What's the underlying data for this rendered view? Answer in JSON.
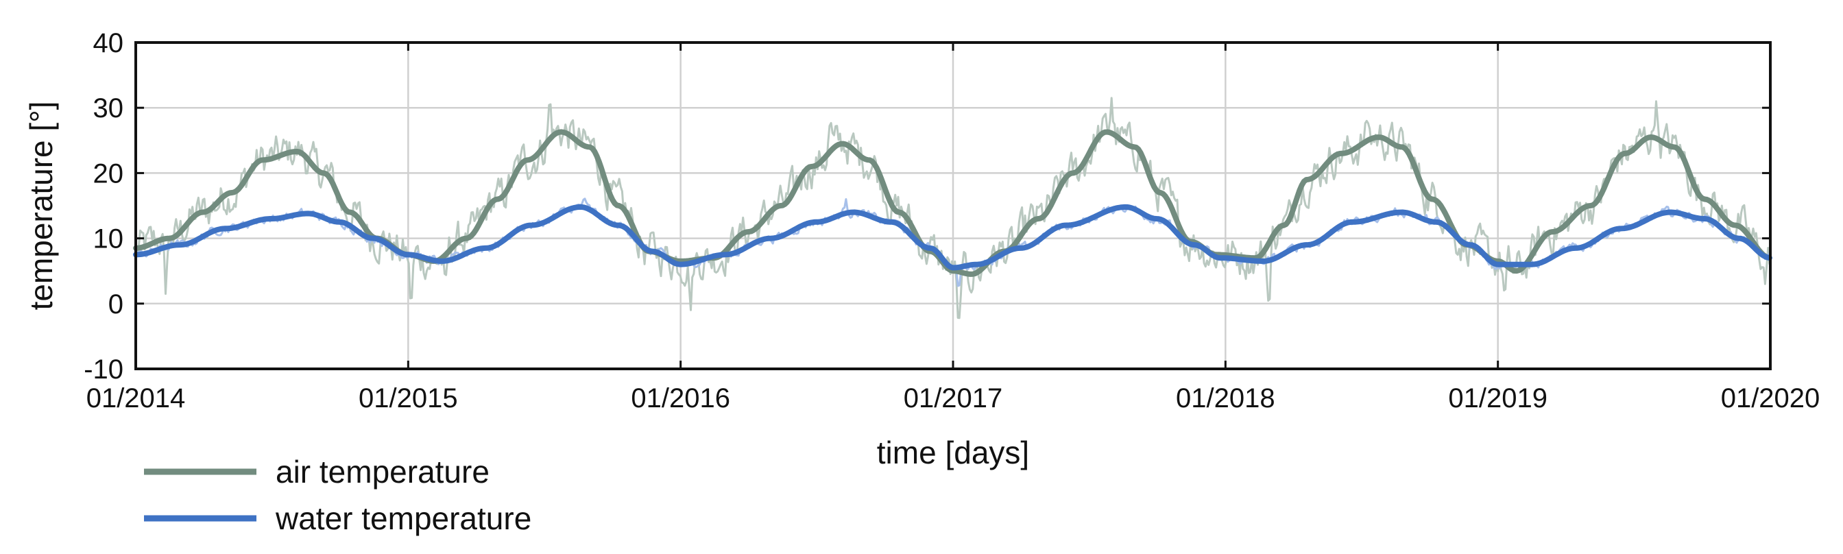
{
  "chart_data": {
    "type": "line",
    "xlabel": "time [days]",
    "ylabel": "temperature [°]",
    "x_ticks": [
      "01/2014",
      "01/2015",
      "01/2016",
      "01/2017",
      "01/2018",
      "01/2019",
      "01/2020"
    ],
    "xlim": [
      "2014-01-01",
      "2020-01-01"
    ],
    "ylim": [
      -10,
      40
    ],
    "y_ticks": [
      -10,
      0,
      10,
      20,
      30,
      40
    ],
    "grid": true,
    "legend_position": "bottom-left, below plot",
    "colors": {
      "air_smooth": "#728c7f",
      "air_raw": "#b9c8c0",
      "water_smooth": "#3e72c4",
      "water_raw": "#a7c0ea",
      "grid": "#d0d0d0",
      "axis": "#111111"
    },
    "series": [
      {
        "name": "air temperature",
        "kind": "smoothed",
        "points": [
          [
            "2014-01-01",
            8.5
          ],
          [
            "2014-02-15",
            10
          ],
          [
            "2014-04-01",
            14
          ],
          [
            "2014-05-10",
            17
          ],
          [
            "2014-06-20",
            22
          ],
          [
            "2014-08-05",
            23.3
          ],
          [
            "2014-09-10",
            20
          ],
          [
            "2014-10-15",
            14
          ],
          [
            "2014-11-20",
            10
          ],
          [
            "2015-01-01",
            7.5
          ],
          [
            "2015-02-05",
            6.5
          ],
          [
            "2015-03-20",
            10
          ],
          [
            "2015-05-01",
            16
          ],
          [
            "2015-06-10",
            22
          ],
          [
            "2015-07-25",
            26.3
          ],
          [
            "2015-09-01",
            24
          ],
          [
            "2015-10-10",
            15
          ],
          [
            "2015-11-20",
            8
          ],
          [
            "2016-01-01",
            6.5
          ],
          [
            "2016-02-15",
            7
          ],
          [
            "2016-04-01",
            11
          ],
          [
            "2016-05-15",
            15
          ],
          [
            "2016-06-25",
            21
          ],
          [
            "2016-08-05",
            24.5
          ],
          [
            "2016-09-10",
            22
          ],
          [
            "2016-10-20",
            14
          ],
          [
            "2016-12-01",
            8
          ],
          [
            "2017-01-01",
            5
          ],
          [
            "2017-01-25",
            4.5
          ],
          [
            "2017-03-10",
            8
          ],
          [
            "2017-04-25",
            13
          ],
          [
            "2017-06-10",
            20
          ],
          [
            "2017-07-25",
            26.3
          ],
          [
            "2017-09-01",
            24
          ],
          [
            "2017-10-05",
            17
          ],
          [
            "2017-11-15",
            9.5
          ],
          [
            "2017-12-20",
            7.5
          ],
          [
            "2018-02-10",
            7
          ],
          [
            "2018-03-20",
            12
          ],
          [
            "2018-04-20",
            19
          ],
          [
            "2018-06-05",
            23
          ],
          [
            "2018-07-25",
            25.5
          ],
          [
            "2018-08-25",
            24
          ],
          [
            "2018-10-05",
            16
          ],
          [
            "2018-11-20",
            9
          ],
          [
            "2019-01-01",
            6.5
          ],
          [
            "2019-01-25",
            5
          ],
          [
            "2019-03-15",
            11
          ],
          [
            "2019-05-05",
            15
          ],
          [
            "2019-06-20",
            23
          ],
          [
            "2019-07-25",
            25.5
          ],
          [
            "2019-08-25",
            24
          ],
          [
            "2019-10-05",
            16
          ],
          [
            "2019-11-15",
            12
          ],
          [
            "2020-01-01",
            7
          ]
        ]
      },
      {
        "name": "water temperature",
        "kind": "smoothed",
        "points": [
          [
            "2014-01-01",
            7.5
          ],
          [
            "2014-03-01",
            9
          ],
          [
            "2014-05-01",
            11.5
          ],
          [
            "2014-07-01",
            13
          ],
          [
            "2014-08-20",
            13.8
          ],
          [
            "2014-10-01",
            12.5
          ],
          [
            "2014-11-15",
            10
          ],
          [
            "2015-01-01",
            7.5
          ],
          [
            "2015-02-15",
            6.5
          ],
          [
            "2015-04-15",
            8.5
          ],
          [
            "2015-06-15",
            12
          ],
          [
            "2015-08-20",
            14.8
          ],
          [
            "2015-10-10",
            12
          ],
          [
            "2015-11-25",
            8
          ],
          [
            "2016-01-01",
            6
          ],
          [
            "2016-03-01",
            7.5
          ],
          [
            "2016-05-01",
            10
          ],
          [
            "2016-07-01",
            12.5
          ],
          [
            "2016-08-20",
            14
          ],
          [
            "2016-10-10",
            12.5
          ],
          [
            "2016-12-01",
            8.5
          ],
          [
            "2017-01-01",
            5.5
          ],
          [
            "2017-02-01",
            6
          ],
          [
            "2017-04-01",
            8.5
          ],
          [
            "2017-06-01",
            12
          ],
          [
            "2017-08-20",
            14.8
          ],
          [
            "2017-10-01",
            13
          ],
          [
            "2017-11-20",
            9
          ],
          [
            "2017-12-25",
            7
          ],
          [
            "2018-02-20",
            6.5
          ],
          [
            "2018-04-20",
            9
          ],
          [
            "2018-06-20",
            12.5
          ],
          [
            "2018-08-25",
            14
          ],
          [
            "2018-10-10",
            12.5
          ],
          [
            "2018-11-25",
            9
          ],
          [
            "2019-01-01",
            6
          ],
          [
            "2019-02-15",
            6
          ],
          [
            "2019-04-15",
            8.5
          ],
          [
            "2019-06-15",
            11.5
          ],
          [
            "2019-08-20",
            14
          ],
          [
            "2019-10-05",
            13
          ],
          [
            "2019-11-20",
            10
          ],
          [
            "2020-01-01",
            7
          ]
        ]
      }
    ],
    "raw_series": [
      {
        "of": "air temperature",
        "noise": 3.5,
        "spikes": [
          [
            "2014-02-10",
            1.5
          ],
          [
            "2015-01-05",
            -2
          ],
          [
            "2015-07-10",
            32.5
          ],
          [
            "2015-02-20",
            2
          ],
          [
            "2016-01-15",
            -1
          ],
          [
            "2016-07-20",
            29
          ],
          [
            "2017-01-08",
            -6.5
          ],
          [
            "2017-08-01",
            31.5
          ],
          [
            "2018-02-28",
            -3
          ],
          [
            "2018-07-10",
            29
          ],
          [
            "2019-01-10",
            0
          ],
          [
            "2019-08-01",
            31
          ],
          [
            "2019-12-25",
            3
          ]
        ]
      },
      {
        "of": "water temperature",
        "noise": 0.8,
        "spikes": [
          [
            "2017-01-08",
            1.5
          ],
          [
            "2015-08-25",
            16.5
          ],
          [
            "2016-08-10",
            16
          ]
        ]
      }
    ]
  }
}
